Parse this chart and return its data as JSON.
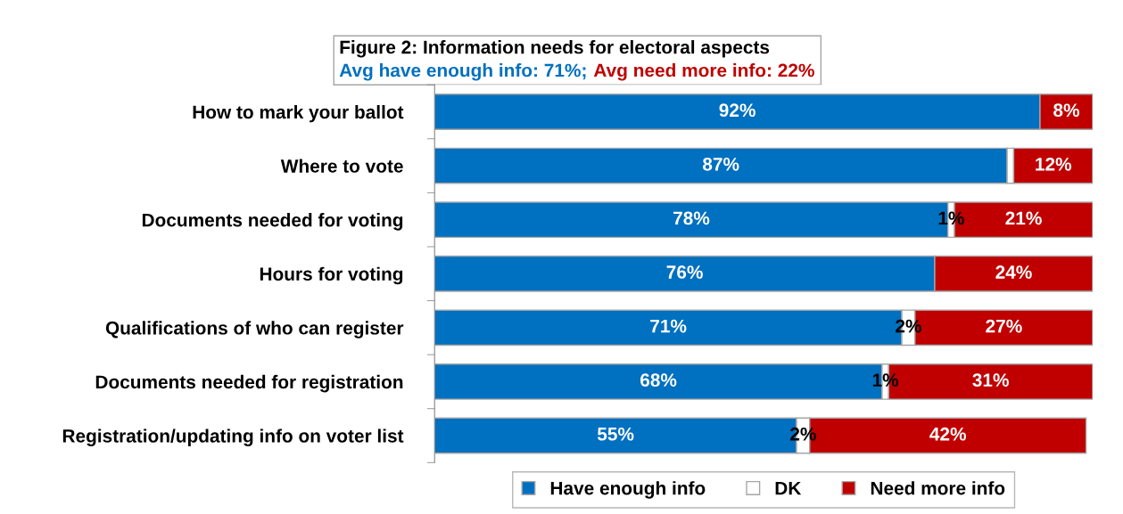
{
  "chart_data": {
    "type": "bar",
    "orientation": "horizontal",
    "stacked": true,
    "title": "Figure 2: Information needs for electoral aspects",
    "annotations": [
      "Avg have enough info: 71%;",
      "Avg need more info: 22%"
    ],
    "categories": [
      "How to mark your ballot",
      "Where to vote",
      "Documents needed for voting",
      "Hours for voting",
      "Qualifications of who can register",
      "Documents needed for registration",
      "Registration/updating info on voter list"
    ],
    "series": [
      {
        "name": "Have enough info",
        "color": "#0070c0",
        "values": [
          92,
          87,
          78,
          76,
          71,
          68,
          55
        ],
        "value_labels": [
          "92%",
          "87%",
          "78%",
          "76%",
          "71%",
          "68%",
          "55%"
        ]
      },
      {
        "name": "DK",
        "color": "#ffffff",
        "values": [
          null,
          1,
          1,
          null,
          2,
          1,
          2
        ],
        "value_labels": [
          null,
          null,
          "1%",
          null,
          "2%",
          "1%",
          "2%"
        ]
      },
      {
        "name": "Need more info",
        "color": "#c00000",
        "values": [
          8,
          12,
          21,
          24,
          27,
          31,
          42
        ],
        "value_labels": [
          "8%",
          "12%",
          "21%",
          "24%",
          "27%",
          "31%",
          "42%"
        ]
      }
    ],
    "xlim": [
      0,
      100
    ],
    "tick_labels": "y",
    "legend": "bottom",
    "grid": false
  }
}
